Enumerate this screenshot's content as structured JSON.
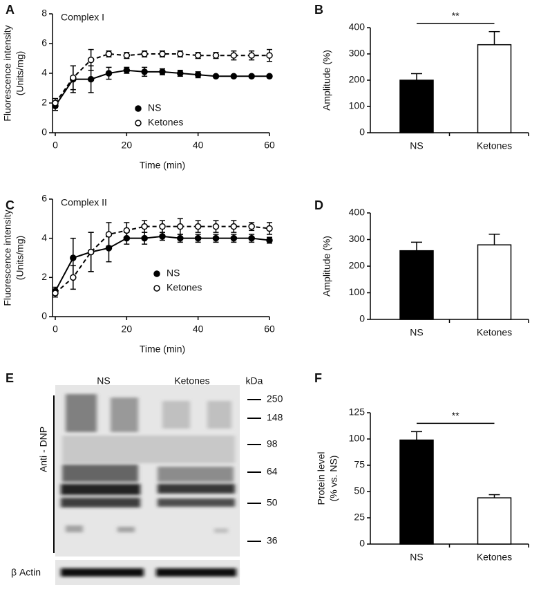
{
  "chart_data": [
    {
      "panel": "A",
      "type": "line",
      "annotation": "Complex I",
      "xlabel": "Time (min)",
      "ylabel": [
        "Fluorescence intensity",
        "(Units/mg)"
      ],
      "x": [
        0,
        5,
        10,
        15,
        20,
        25,
        30,
        35,
        40,
        45,
        50,
        55,
        60
      ],
      "xlim": [
        0,
        60
      ],
      "xticks": [
        0,
        20,
        40,
        60
      ],
      "ylim": [
        0,
        8
      ],
      "yticks": [
        0,
        2,
        4,
        6,
        8
      ],
      "series": [
        {
          "name": "NS",
          "color": "#000000",
          "marker": "filled",
          "line": "solid",
          "values": [
            1.8,
            3.6,
            3.6,
            4.0,
            4.2,
            4.1,
            4.1,
            4.0,
            3.9,
            3.8,
            3.8,
            3.8,
            3.8
          ],
          "errors": [
            0.3,
            0.9,
            0.9,
            0.4,
            0.2,
            0.3,
            0.2,
            0.2,
            0.2,
            0.1,
            0.1,
            0.1,
            0.1
          ]
        },
        {
          "name": "Ketones",
          "color": "#000000",
          "marker": "open",
          "line": "dashed",
          "values": [
            2.0,
            3.7,
            4.9,
            5.3,
            5.2,
            5.3,
            5.3,
            5.3,
            5.2,
            5.2,
            5.2,
            5.2,
            5.2
          ],
          "errors": [
            0.3,
            0.8,
            0.7,
            0.2,
            0.2,
            0.2,
            0.2,
            0.2,
            0.2,
            0.2,
            0.3,
            0.3,
            0.4
          ]
        }
      ]
    },
    {
      "panel": "B",
      "type": "bar",
      "ylabel": [
        "Amplitude (%)"
      ],
      "categories": [
        "NS",
        "Ketones"
      ],
      "values": [
        200,
        335
      ],
      "errors": [
        25,
        50
      ],
      "colors": [
        "#000000",
        "#ffffff"
      ],
      "ylim": [
        0,
        400
      ],
      "yticks": [
        0,
        100,
        200,
        300,
        400
      ],
      "significance": "**"
    },
    {
      "panel": "C",
      "type": "line",
      "annotation": "Complex II",
      "xlabel": "Time (min)",
      "ylabel": [
        "Fluorescence intensity",
        "(Units/mg)"
      ],
      "x": [
        0,
        5,
        10,
        15,
        20,
        25,
        30,
        35,
        40,
        45,
        50,
        55,
        60
      ],
      "xlim": [
        0,
        60
      ],
      "xticks": [
        0,
        20,
        40,
        60
      ],
      "ylim": [
        0,
        6
      ],
      "yticks": [
        0,
        2,
        4,
        6
      ],
      "series": [
        {
          "name": "NS",
          "color": "#000000",
          "marker": "filled",
          "line": "solid",
          "values": [
            1.3,
            3.0,
            3.3,
            3.5,
            4.0,
            4.0,
            4.1,
            4.0,
            4.0,
            4.0,
            4.0,
            4.0,
            3.9
          ],
          "errors": [
            0.2,
            1.0,
            1.0,
            0.7,
            0.3,
            0.3,
            0.2,
            0.2,
            0.2,
            0.2,
            0.2,
            0.2,
            0.15
          ]
        },
        {
          "name": "Ketones",
          "color": "#000000",
          "marker": "open",
          "line": "dashed",
          "values": [
            1.2,
            2.0,
            3.3,
            4.2,
            4.4,
            4.6,
            4.6,
            4.6,
            4.6,
            4.6,
            4.6,
            4.6,
            4.5
          ],
          "errors": [
            0.2,
            0.6,
            1.0,
            0.6,
            0.4,
            0.3,
            0.3,
            0.4,
            0.3,
            0.3,
            0.3,
            0.2,
            0.3
          ]
        }
      ]
    },
    {
      "panel": "D",
      "type": "bar",
      "ylabel": [
        "Amplitude (%)"
      ],
      "categories": [
        "NS",
        "Ketones"
      ],
      "values": [
        258,
        280
      ],
      "errors": [
        32,
        40
      ],
      "colors": [
        "#000000",
        "#ffffff"
      ],
      "ylim": [
        0,
        400
      ],
      "yticks": [
        0,
        100,
        200,
        300,
        400
      ]
    },
    {
      "panel": "F",
      "type": "bar",
      "ylabel": [
        "Protein level",
        "(% vs. NS)"
      ],
      "categories": [
        "NS",
        "Ketones"
      ],
      "values": [
        99,
        44
      ],
      "errors": [
        8,
        3
      ],
      "colors": [
        "#000000",
        "#ffffff"
      ],
      "ylim": [
        0,
        125
      ],
      "yticks": [
        0,
        25,
        50,
        75,
        100,
        125
      ],
      "significance": "**"
    }
  ],
  "blot": {
    "panel": "E",
    "lanes": [
      "NS",
      "Ketones"
    ],
    "unit": "kDa",
    "markers": [
      250,
      148,
      98,
      64,
      50,
      36
    ],
    "antibody": "Anti - DNP",
    "loading_control": "β Actin"
  }
}
